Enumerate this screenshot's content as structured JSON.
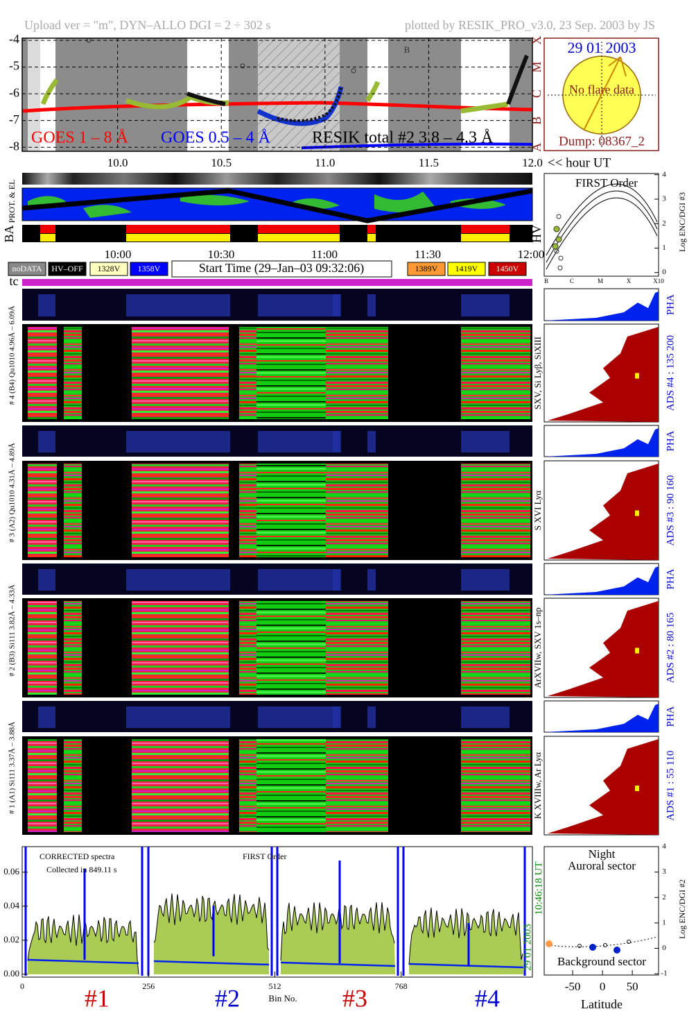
{
  "header": {
    "upload": "Upload ver = \"m\", DYN–ALLO DGI =   2 ÷ 302 s",
    "plotted": "plotted by RESIK_PRO_v3.0, 23 Sep. 2003 by JS"
  },
  "goes": {
    "ylim": [
      -8.15,
      -3.92
    ],
    "yticks": [
      -4,
      -5,
      -6,
      -7,
      -8
    ],
    "xlim": [
      9.54,
      12.0
    ],
    "xticks": [
      {
        "value": 10,
        "label": "10.0"
      },
      10.5,
      {
        "value": 11,
        "label": "11.0"
      },
      11.5,
      {
        "value": 12,
        "label": "12.0"
      }
    ],
    "x_label": "<< hour UT",
    "classes": [
      "X",
      "M",
      "C",
      "B",
      "A"
    ],
    "flare_letter": "B",
    "legend": [
      {
        "name": "GOES 1 – 8 Å",
        "color": "#ff0000"
      },
      {
        "name": "GOES 0.5 – 4 Å",
        "color": "#0000ff"
      },
      {
        "name": "RESIK total #2  3.8 – 4.3 Å",
        "color": "#000000"
      }
    ]
  },
  "sun": {
    "date": "29 01 2003",
    "note": "No flare data",
    "dump": "Dump: 08367_2"
  },
  "orbit": {
    "labels": [
      "PROT. & EL",
      "BA",
      "HV"
    ]
  },
  "timeline": {
    "ticks": [
      "10:00",
      "10:30",
      "11:00",
      "11:30",
      "12:00"
    ],
    "legend": [
      {
        "name": "noDATA",
        "color": "#888888"
      },
      {
        "name": "HV–OFF",
        "color": "#000000"
      },
      {
        "name": "1328V",
        "color": "#ffffc0"
      },
      {
        "name": "1358V",
        "color": "#0000ff"
      },
      {
        "name": "1389V",
        "color": "#ff9933"
      },
      {
        "name": "1419V",
        "color": "#ffff00"
      },
      {
        "name": "1450V",
        "color": "#cc0000"
      }
    ],
    "start_time": "Start Time (29–Jan–03 09:32:06)",
    "tc": "tc"
  },
  "first_order": {
    "title": "FIRST Order",
    "ylabel": "Log ENC/DGI #3",
    "ylim": [
      -0.15,
      4.05
    ],
    "yticks": [
      0,
      1,
      2,
      3,
      4
    ],
    "classes": [
      "B",
      "C",
      "M",
      "X",
      "X10"
    ]
  },
  "channels": [
    {
      "label": "# 4 (B4) Qu1010 4.96Å – 6.09Å",
      "lines": "SXV, Si Lyβ, SiXIII",
      "ads": "ADS #4 :   135 200",
      "pha": "PHA"
    },
    {
      "label": "# 3 (A2) Qu1010 4.31Å – 4.89Å",
      "lines": "S XVI Lyα",
      "ads": "ADS #3 :    90 160",
      "pha": "PHA"
    },
    {
      "label": "# 2 (B3) Si111 3.82Å – 4.33Å",
      "lines": "ArXVIIw, SXV 1s–np",
      "ads": "ADS #2 :    80 165",
      "pha": "PHA"
    },
    {
      "label": "# 1 (A1) Si111 3.37Å – 3.88Å",
      "lines": "K XVIIIw, Ar Lyα",
      "ads": "ADS #1 :    55 110",
      "pha": "PHA"
    }
  ],
  "spectrum": {
    "ylim": [
      -0.0017,
      0.075
    ],
    "yticks": [
      {
        "value": 0,
        "label": "0.00"
      },
      0.02,
      0.04,
      0.06
    ],
    "xlim": [
      0,
      1034
    ],
    "xticks": [
      0,
      256,
      512,
      768
    ],
    "xlabel": "Bin No.",
    "title": "CORRECTED spectra",
    "collected": "Collected in  849.11 s",
    "order": "FIRST Order",
    "time": "10:46:18 UT",
    "date": "29 01 2003",
    "sections": [
      {
        "name": "#1",
        "color": "#cc0000"
      },
      {
        "name": "#2",
        "color": "#0000cc"
      },
      {
        "name": "#3",
        "color": "#cc0000"
      },
      {
        "name": "#4",
        "color": "#0000cc"
      }
    ]
  },
  "map": {
    "title": "Night",
    "top": "Auroral sector",
    "bottom": "Background sector",
    "xlabel": "Latitude",
    "xlim": [
      -97.7,
      94
    ],
    "xticks": [
      -50,
      0,
      50
    ],
    "ylim": [
      -1.05,
      4.0
    ],
    "yticks": [
      -1,
      0,
      1,
      2,
      3,
      4
    ],
    "ylabel": "Log ENC/DGI #2"
  }
}
